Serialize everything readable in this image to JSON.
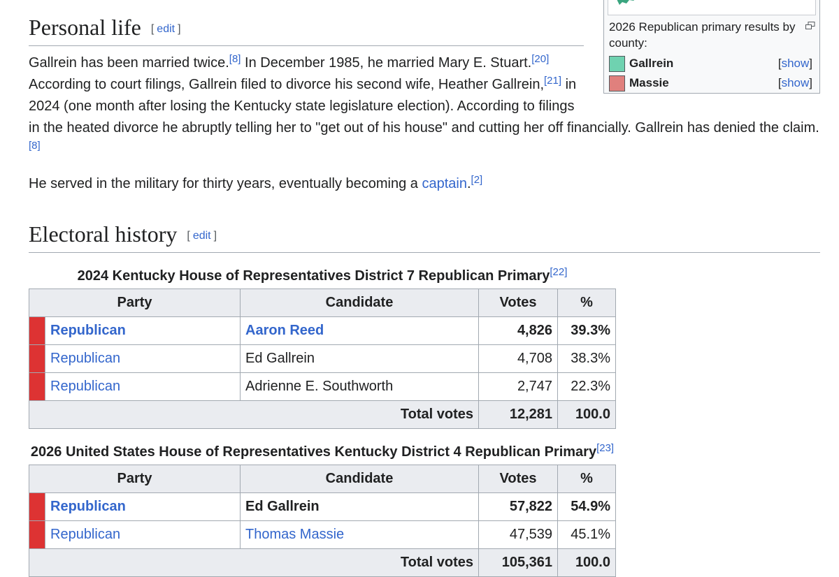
{
  "infobox": {
    "caption": "2026 Republican primary results by county:",
    "legend": [
      {
        "label": "Gallrein",
        "color": "#6fd2b0",
        "toggle": {
          "open": "[",
          "link": "show",
          "close": "]"
        }
      },
      {
        "label": "Massie",
        "color": "#e0807d",
        "toggle": {
          "open": "[",
          "link": "show",
          "close": "]"
        }
      }
    ]
  },
  "sections": [
    {
      "heading": "Personal life",
      "edit": {
        "open": "[",
        "link": "edit",
        "close": "]"
      },
      "paragraphs": [
        {
          "runs": [
            {
              "kind": "text",
              "text": "Gallrein has been married twice."
            },
            {
              "kind": "sup",
              "text": "[8]"
            },
            {
              "kind": "text",
              "text": " In December 1985, he married Mary E. Stuart."
            },
            {
              "kind": "sup",
              "text": "[20]"
            },
            {
              "kind": "text",
              "text": " According to court filings, Gallrein filed to divorce his second wife, Heather Gallrein,"
            },
            {
              "kind": "sup",
              "text": "[21]"
            },
            {
              "kind": "text",
              "text": " in 2024 (one month after losing the Kentucky state legislature election). According to filings in the heated divorce he abruptly telling her to \"get out of his house\" and cutting her off financially. Gallrein has denied the claim."
            },
            {
              "kind": "sup",
              "text": "[8]"
            }
          ]
        },
        {
          "runs": [
            {
              "kind": "text",
              "text": "He served in the military for thirty years, eventually becoming a "
            },
            {
              "kind": "link",
              "text": "captain"
            },
            {
              "kind": "text",
              "text": "."
            },
            {
              "kind": "sup",
              "text": "[2]"
            }
          ]
        }
      ]
    },
    {
      "heading": "Electoral history",
      "edit": {
        "open": "[",
        "link": "edit",
        "close": "]"
      },
      "tables": [
        {
          "caption": {
            "text": "2024 Kentucky House of Representatives District 7 Republican Primary",
            "ref": "[22]"
          },
          "columns": [
            "Party",
            "Candidate",
            "Votes",
            "%"
          ],
          "rows": [
            {
              "party": "Republican",
              "candidate": "Aaron Reed",
              "votes": "4,826",
              "percent": "39.3%",
              "winner": true,
              "candidate_link": true
            },
            {
              "party": "Republican",
              "candidate": "Ed Gallrein",
              "votes": "4,708",
              "percent": "38.3%",
              "winner": false,
              "candidate_link": false
            },
            {
              "party": "Republican",
              "candidate": "Adrienne E. Southworth",
              "votes": "2,747",
              "percent": "22.3%",
              "winner": false,
              "candidate_link": false
            }
          ],
          "total": {
            "label": "Total votes",
            "votes": "12,281",
            "percent": "100.0"
          }
        },
        {
          "caption": {
            "text": "2026 United States House of Representatives Kentucky District 4 Republican Primary",
            "ref": "[23]"
          },
          "columns": [
            "Party",
            "Candidate",
            "Votes",
            "%"
          ],
          "rows": [
            {
              "party": "Republican",
              "candidate": "Ed Gallrein",
              "votes": "57,822",
              "percent": "54.9%",
              "winner": true,
              "candidate_link": false
            },
            {
              "party": "Republican",
              "candidate": "Thomas Massie",
              "votes": "47,539",
              "percent": "45.1%",
              "winner": false,
              "candidate_link": true
            }
          ],
          "total": {
            "label": "Total votes",
            "votes": "105,361",
            "percent": "100.0"
          }
        }
      ]
    }
  ]
}
